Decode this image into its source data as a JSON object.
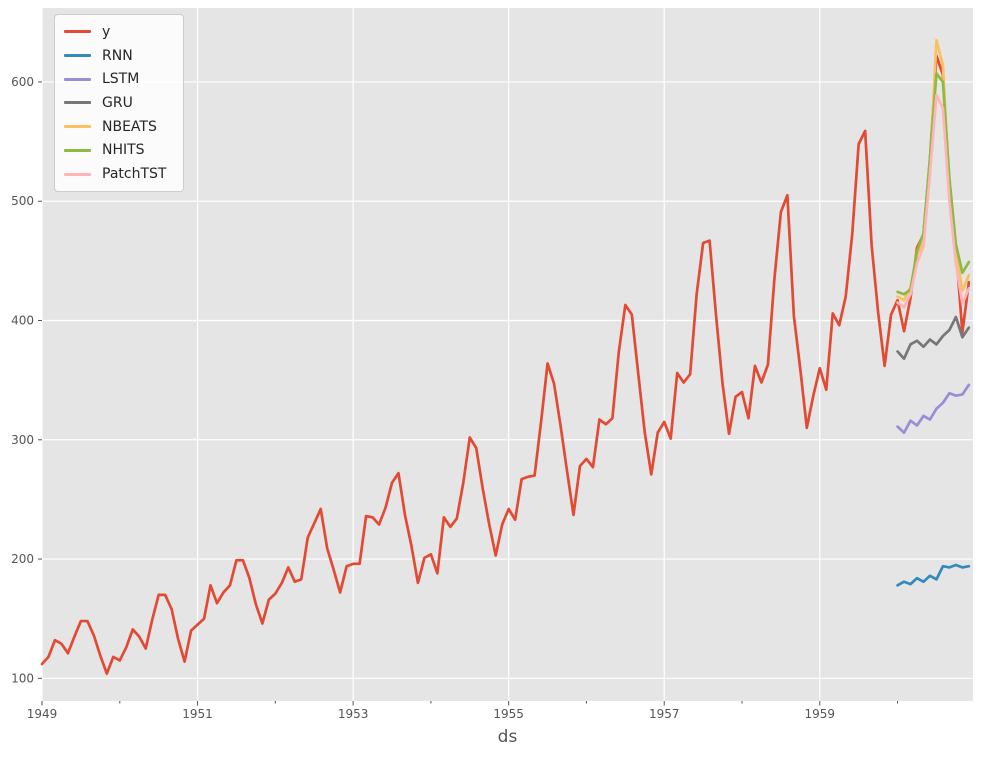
{
  "chart_data": {
    "type": "line",
    "title": "",
    "xlabel": "ds",
    "ylabel": "",
    "x_unit": "monthly",
    "x_start": "1949-01",
    "x_end": "1960-12",
    "xlim": [
      1949.0,
      1960.97
    ],
    "ylim": [
      81,
      662
    ],
    "x_ticks_major": [
      1949,
      1951,
      1953,
      1955,
      1957,
      1959
    ],
    "x_ticks_minor": [
      1950,
      1952,
      1954,
      1956,
      1958,
      1960
    ],
    "y_ticks": [
      100,
      200,
      300,
      400,
      500,
      600
    ],
    "grid": "major, white lines, on",
    "plot_bg": "#E5E5E5",
    "figure_bg": "#FFFFFF",
    "grid_color": "#FFFFFF",
    "tick_label_color": "#555555",
    "legend_position": "upper-left",
    "series": [
      {
        "name": "y",
        "color": "#E24A33",
        "start_month_index": 0,
        "values": [
          112,
          118,
          132,
          129,
          121,
          135,
          148,
          148,
          136,
          119,
          104,
          118,
          115,
          126,
          141,
          135,
          125,
          149,
          170,
          170,
          158,
          133,
          114,
          140,
          145,
          150,
          178,
          163,
          172,
          178,
          199,
          199,
          184,
          162,
          146,
          166,
          171,
          180,
          193,
          181,
          183,
          218,
          230,
          242,
          209,
          191,
          172,
          194,
          196,
          196,
          236,
          235,
          229,
          243,
          264,
          272,
          237,
          211,
          180,
          201,
          204,
          188,
          235,
          227,
          234,
          264,
          302,
          293,
          259,
          229,
          203,
          229,
          242,
          233,
          267,
          269,
          270,
          315,
          364,
          347,
          312,
          274,
          237,
          278,
          284,
          277,
          317,
          313,
          318,
          374,
          413,
          405,
          355,
          306,
          271,
          306,
          315,
          301,
          356,
          348,
          355,
          422,
          465,
          467,
          404,
          347,
          305,
          336,
          340,
          318,
          362,
          348,
          363,
          435,
          491,
          505,
          404,
          359,
          310,
          337,
          360,
          342,
          406,
          396,
          420,
          472,
          548,
          559,
          463,
          407,
          362,
          405,
          417,
          391,
          419,
          461,
          472,
          535,
          622,
          606,
          508,
          461,
          390,
          432
        ]
      },
      {
        "name": "RNN",
        "color": "#348ABD",
        "start_month_index": 132,
        "values": [
          178,
          181,
          179,
          184,
          181,
          186,
          183,
          194,
          193,
          195,
          193,
          194
        ]
      },
      {
        "name": "LSTM",
        "color": "#988ED5",
        "start_month_index": 132,
        "values": [
          311,
          306,
          316,
          312,
          320,
          317,
          326,
          331,
          339,
          337,
          338,
          346
        ]
      },
      {
        "name": "GRU",
        "color": "#777777",
        "start_month_index": 132,
        "values": [
          374,
          368,
          380,
          383,
          378,
          384,
          380,
          387,
          392,
          403,
          386,
          394
        ]
      },
      {
        "name": "NBEATS",
        "color": "#FBC15E",
        "start_month_index": 132,
        "values": [
          420,
          417,
          428,
          455,
          466,
          527,
          635,
          614,
          509,
          459,
          425,
          438
        ]
      },
      {
        "name": "NHITS",
        "color": "#8EBA42",
        "start_month_index": 132,
        "values": [
          424,
          422,
          426,
          458,
          473,
          536,
          607,
          600,
          519,
          464,
          440,
          449
        ]
      },
      {
        "name": "PatchTST",
        "color": "#FFB5B8",
        "start_month_index": 132,
        "values": [
          415,
          411,
          422,
          448,
          462,
          523,
          589,
          578,
          500,
          448,
          414,
          427
        ]
      }
    ]
  }
}
